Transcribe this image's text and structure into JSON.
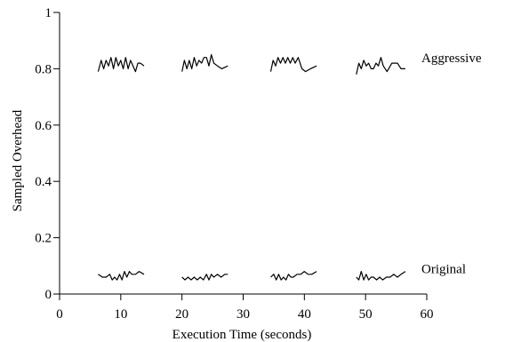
{
  "chart_data": {
    "type": "line",
    "title": "",
    "xlabel": "Execution Time (seconds)",
    "ylabel": "Sampled Overhead",
    "xlim": [
      0,
      60
    ],
    "ylim": [
      0,
      1
    ],
    "xticks": [
      0,
      10,
      20,
      30,
      40,
      50,
      60
    ],
    "yticks": [
      0,
      0.2,
      0.4,
      0.6,
      0.8,
      1
    ],
    "ytick_labels": [
      "0",
      "0.2",
      "0.4",
      "0.6",
      "0.8",
      "1"
    ],
    "grid": false,
    "legend": "none (series labeled inline at right)",
    "series": [
      {
        "name": "Aggressive",
        "segments": [
          [
            [
              6.3,
              0.79
            ],
            [
              6.8,
              0.83
            ],
            [
              7.2,
              0.8
            ],
            [
              7.6,
              0.83
            ],
            [
              8.0,
              0.81
            ],
            [
              8.4,
              0.84
            ],
            [
              8.8,
              0.8
            ],
            [
              9.2,
              0.84
            ],
            [
              9.6,
              0.81
            ],
            [
              10.0,
              0.83
            ],
            [
              10.4,
              0.8
            ],
            [
              10.8,
              0.84
            ],
            [
              11.2,
              0.8
            ],
            [
              11.6,
              0.83
            ],
            [
              12.0,
              0.81
            ],
            [
              12.4,
              0.79
            ],
            [
              12.8,
              0.82
            ],
            [
              13.2,
              0.82
            ],
            [
              13.8,
              0.81
            ]
          ],
          [
            [
              20.0,
              0.79
            ],
            [
              20.4,
              0.83
            ],
            [
              20.8,
              0.8
            ],
            [
              21.2,
              0.83
            ],
            [
              21.6,
              0.8
            ],
            [
              22.0,
              0.84
            ],
            [
              22.4,
              0.81
            ],
            [
              22.8,
              0.83
            ],
            [
              23.2,
              0.82
            ],
            [
              23.6,
              0.84
            ],
            [
              24.0,
              0.84
            ],
            [
              24.4,
              0.81
            ],
            [
              24.8,
              0.85
            ],
            [
              25.2,
              0.82
            ],
            [
              25.8,
              0.81
            ],
            [
              26.5,
              0.8
            ],
            [
              27.5,
              0.81
            ]
          ],
          [
            [
              34.5,
              0.79
            ],
            [
              34.9,
              0.83
            ],
            [
              35.3,
              0.81
            ],
            [
              35.7,
              0.84
            ],
            [
              36.1,
              0.82
            ],
            [
              36.5,
              0.84
            ],
            [
              36.9,
              0.82
            ],
            [
              37.3,
              0.84
            ],
            [
              37.7,
              0.82
            ],
            [
              38.1,
              0.84
            ],
            [
              38.5,
              0.82
            ],
            [
              39.0,
              0.84
            ],
            [
              39.6,
              0.8
            ],
            [
              40.2,
              0.79
            ],
            [
              41.0,
              0.8
            ],
            [
              42.0,
              0.81
            ]
          ],
          [
            [
              48.5,
              0.78
            ],
            [
              48.9,
              0.82
            ],
            [
              49.3,
              0.8
            ],
            [
              49.7,
              0.83
            ],
            [
              50.1,
              0.81
            ],
            [
              50.5,
              0.82
            ],
            [
              50.9,
              0.8
            ],
            [
              51.3,
              0.8
            ],
            [
              51.7,
              0.82
            ],
            [
              52.1,
              0.81
            ],
            [
              52.5,
              0.84
            ],
            [
              52.9,
              0.81
            ],
            [
              53.5,
              0.79
            ],
            [
              54.3,
              0.82
            ],
            [
              55.2,
              0.82
            ],
            [
              55.8,
              0.8
            ],
            [
              56.5,
              0.8
            ]
          ]
        ]
      },
      {
        "name": "Original",
        "segments": [
          [
            [
              6.3,
              0.07
            ],
            [
              7.0,
              0.06
            ],
            [
              7.6,
              0.06
            ],
            [
              8.2,
              0.07
            ],
            [
              8.6,
              0.05
            ],
            [
              9.0,
              0.06
            ],
            [
              9.4,
              0.05
            ],
            [
              9.8,
              0.07
            ],
            [
              10.2,
              0.05
            ],
            [
              10.6,
              0.08
            ],
            [
              11.0,
              0.06
            ],
            [
              11.4,
              0.08
            ],
            [
              11.8,
              0.07
            ],
            [
              12.4,
              0.07
            ],
            [
              13.0,
              0.08
            ],
            [
              13.8,
              0.07
            ]
          ],
          [
            [
              20.0,
              0.06
            ],
            [
              20.5,
              0.05
            ],
            [
              21.0,
              0.06
            ],
            [
              21.5,
              0.05
            ],
            [
              22.0,
              0.06
            ],
            [
              22.5,
              0.05
            ],
            [
              23.0,
              0.06
            ],
            [
              23.5,
              0.05
            ],
            [
              24.0,
              0.07
            ],
            [
              24.4,
              0.05
            ],
            [
              24.8,
              0.07
            ],
            [
              25.2,
              0.06
            ],
            [
              25.8,
              0.07
            ],
            [
              26.4,
              0.06
            ],
            [
              27.0,
              0.07
            ],
            [
              27.5,
              0.07
            ]
          ],
          [
            [
              34.5,
              0.06
            ],
            [
              35.0,
              0.07
            ],
            [
              35.4,
              0.05
            ],
            [
              35.8,
              0.07
            ],
            [
              36.2,
              0.05
            ],
            [
              36.6,
              0.06
            ],
            [
              37.0,
              0.05
            ],
            [
              37.4,
              0.07
            ],
            [
              37.8,
              0.06
            ],
            [
              38.2,
              0.06
            ],
            [
              38.8,
              0.07
            ],
            [
              39.4,
              0.07
            ],
            [
              40.0,
              0.08
            ],
            [
              40.6,
              0.07
            ],
            [
              41.2,
              0.07
            ],
            [
              42.0,
              0.08
            ]
          ],
          [
            [
              48.5,
              0.06
            ],
            [
              48.9,
              0.05
            ],
            [
              49.3,
              0.08
            ],
            [
              49.7,
              0.05
            ],
            [
              50.1,
              0.07
            ],
            [
              50.5,
              0.05
            ],
            [
              50.9,
              0.06
            ],
            [
              51.3,
              0.06
            ],
            [
              51.8,
              0.05
            ],
            [
              52.3,
              0.06
            ],
            [
              52.8,
              0.05
            ],
            [
              53.4,
              0.06
            ],
            [
              54.0,
              0.06
            ],
            [
              54.6,
              0.07
            ],
            [
              55.2,
              0.06
            ],
            [
              55.8,
              0.07
            ],
            [
              56.5,
              0.08
            ]
          ]
        ]
      }
    ]
  }
}
